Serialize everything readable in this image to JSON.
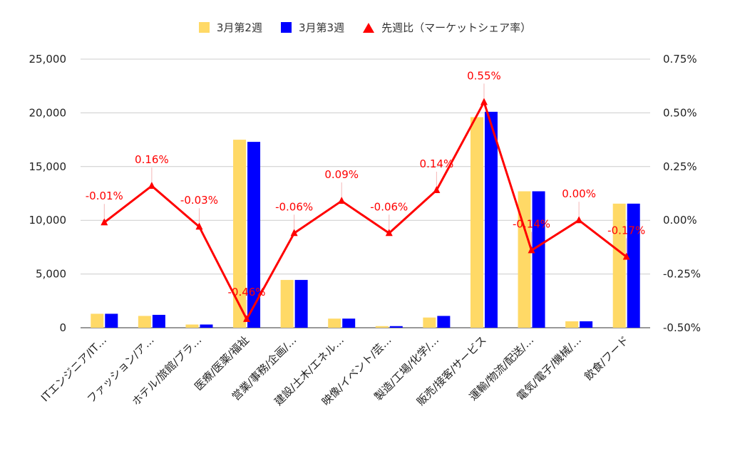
{
  "legend": {
    "series1": "3月第2週",
    "series2": "3月第3週",
    "series3": "先週比（マーケットシェア率）"
  },
  "colors": {
    "series1": "#ffd966",
    "series2": "#0000ff",
    "series3": "#ff0000",
    "grid": "#cccccc",
    "axis": "#333333"
  },
  "chart_data": {
    "type": "bar",
    "categories": [
      "ITエンジニア/IT…",
      "ファッション/ア…",
      "ホテル/旅館/ブラ…",
      "医療/医薬/福祉",
      "営業/事務/企画/…",
      "建設/土木/エネル…",
      "映像/イベント/芸…",
      "製造/工場/化学/…",
      "販売/接客/サービス",
      "運輸/物流/配送/…",
      "電気/電子/機械/…",
      "飲食/フード"
    ],
    "series": [
      {
        "name": "3月第2週",
        "type": "bar",
        "axis": "left",
        "values": [
          1300,
          1100,
          300,
          17500,
          4450,
          850,
          150,
          950,
          19600,
          12700,
          600,
          11550
        ]
      },
      {
        "name": "3月第3週",
        "type": "bar",
        "axis": "left",
        "values": [
          1300,
          1200,
          300,
          17300,
          4450,
          850,
          150,
          1100,
          20100,
          12700,
          600,
          11550
        ]
      },
      {
        "name": "先週比（マーケットシェア率）",
        "type": "line",
        "axis": "right",
        "values": [
          -0.01,
          0.16,
          -0.03,
          -0.46,
          -0.06,
          0.09,
          -0.06,
          0.14,
          0.55,
          -0.14,
          0.0,
          -0.17
        ],
        "labels": [
          "-0.01%",
          "0.16%",
          "-0.03%",
          "-0.46%",
          "-0.06%",
          "0.09%",
          "-0.06%",
          "0.14%",
          "0.55%",
          "-0.14%",
          "0.00%",
          "-0.17%"
        ]
      }
    ],
    "left_axis": {
      "min": 0,
      "max": 25000,
      "ticks": [
        "0",
        "5,000",
        "10,000",
        "15,000",
        "20,000",
        "25,000"
      ]
    },
    "right_axis": {
      "min": -0.5,
      "max": 0.75,
      "ticks": [
        "-0.50%",
        "-0.25%",
        "0.00%",
        "0.25%",
        "0.50%",
        "0.75%"
      ]
    },
    "grid": true,
    "legend_position": "top"
  }
}
